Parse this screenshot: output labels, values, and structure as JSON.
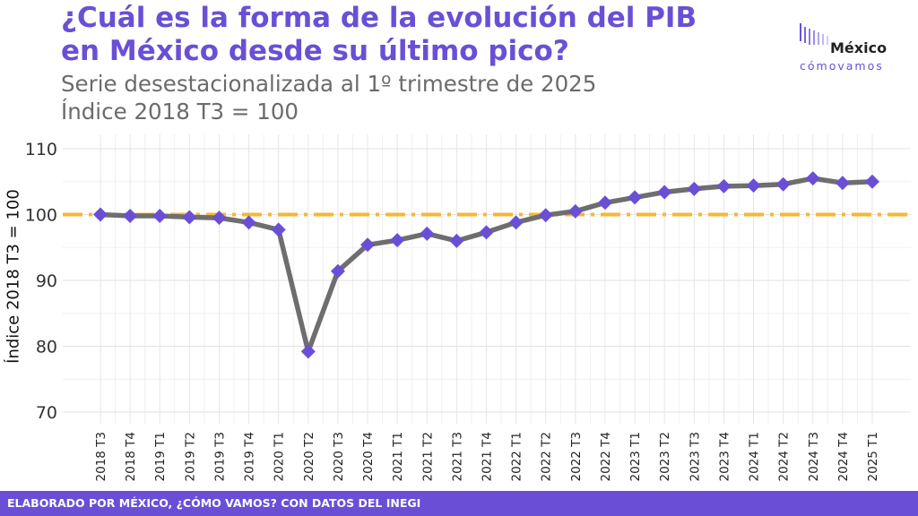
{
  "header": {
    "title_line1": "¿Cuál es la forma de la evolución del PIB",
    "title_line2": "en México desde su último pico?",
    "subtitle_line1": "Serie desestacionalizada al 1º trimestre de 2025",
    "subtitle_line2": "Índice 2018 T3 = 100"
  },
  "logo": {
    "word": "México",
    "sub": "cómovamos"
  },
  "footer": {
    "source": "ELABORADO POR MÉXICO, ¿CÓMO VAMOS? CON DATOS DEL INEGI"
  },
  "colors": {
    "accent": "#6a4fd6",
    "line": "#6e6e6e",
    "reference": "#f7b731",
    "marker": "#6a4fd6"
  },
  "chart_data": {
    "type": "line",
    "title": "¿Cuál es la forma de la evolución del PIB en México desde su último pico?",
    "xlabel": "",
    "ylabel": "Índice 2018 T3 = 100",
    "ylim": [
      70,
      110
    ],
    "yticks": [
      70,
      80,
      90,
      100,
      110
    ],
    "grid": true,
    "reference_line": {
      "y": 100,
      "style": "dash-dot"
    },
    "categories": [
      "2018 T3",
      "2018 T4",
      "2019 T1",
      "2019 T2",
      "2019 T3",
      "2019 T4",
      "2020 T1",
      "2020 T2",
      "2020 T3",
      "2020 T4",
      "2021 T1",
      "2021 T2",
      "2021 T3",
      "2021 T4",
      "2022 T1",
      "2022 T2",
      "2022 T3",
      "2022 T4",
      "2023 T1",
      "2023 T2",
      "2023 T3",
      "2023 T4",
      "2024 T1",
      "2024 T2",
      "2024 T3",
      "2024 T4",
      "2025 T1"
    ],
    "values": [
      100.0,
      99.8,
      99.8,
      99.6,
      99.5,
      98.8,
      97.7,
      79.2,
      91.4,
      95.4,
      96.1,
      97.1,
      96.0,
      97.3,
      98.8,
      99.9,
      100.5,
      101.8,
      102.6,
      103.4,
      103.9,
      104.3,
      104.4,
      104.6,
      105.5,
      104.8,
      105.0
    ]
  }
}
